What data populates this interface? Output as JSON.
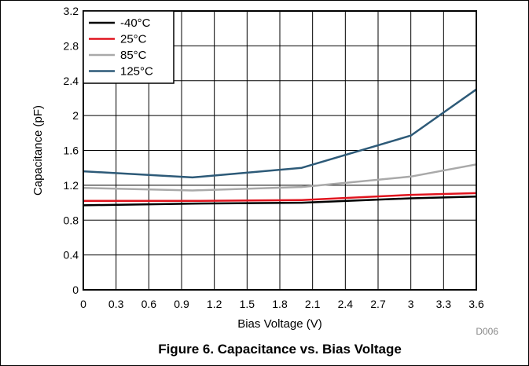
{
  "figure": {
    "caption": "Figure 6. Capacitance vs. Bias Voltage",
    "code": "D006"
  },
  "chart_data": {
    "type": "line",
    "xlabel": "Bias Voltage (V)",
    "ylabel": "Capacitance (pF)",
    "xlim": [
      0,
      3.6
    ],
    "ylim": [
      0,
      3.2
    ],
    "x_ticks": [
      "0",
      "0.3",
      "0.6",
      "0.9",
      "1.2",
      "1.5",
      "1.8",
      "2.1",
      "2.4",
      "2.7",
      "3",
      "3.3",
      "3.6"
    ],
    "y_ticks": [
      "0",
      "0.4",
      "0.8",
      "1.2",
      "1.6",
      "2",
      "2.4",
      "2.8",
      "3.2"
    ],
    "grid": true,
    "legend_position": "top-left",
    "series": [
      {
        "name": "-40°C",
        "color": "#000000",
        "x": [
          0,
          1,
          2,
          3,
          3.6
        ],
        "values": [
          0.97,
          0.99,
          1.0,
          1.05,
          1.07
        ]
      },
      {
        "name": "25°C",
        "color": "#e0141e",
        "x": [
          0,
          1,
          2,
          3,
          3.6
        ],
        "values": [
          1.02,
          1.02,
          1.03,
          1.09,
          1.11
        ]
      },
      {
        "name": "85°C",
        "color": "#a9a9a9",
        "x": [
          0,
          1,
          2,
          3,
          3.6
        ],
        "values": [
          1.17,
          1.14,
          1.18,
          1.3,
          1.44
        ]
      },
      {
        "name": "125°C",
        "color": "#2d5a78",
        "x": [
          0,
          1,
          2,
          3,
          3.6
        ],
        "values": [
          1.36,
          1.29,
          1.4,
          1.77,
          2.3
        ]
      }
    ]
  }
}
